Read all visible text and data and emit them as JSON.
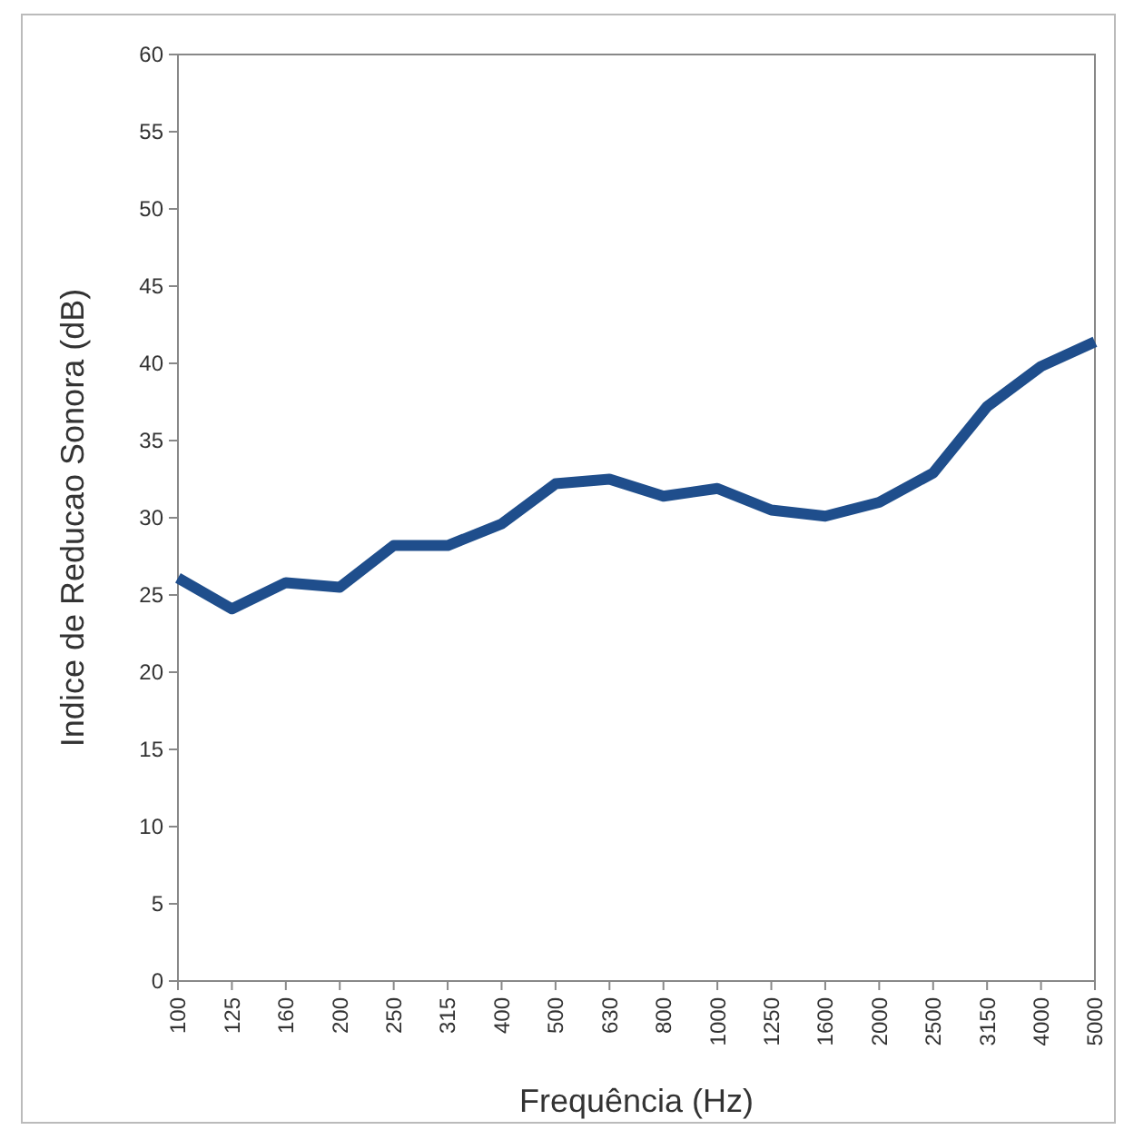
{
  "chart_data": {
    "type": "line",
    "xlabel": "Frequência (Hz)",
    "ylabel": "Indice de Reducao Sonora (dB)",
    "categories": [
      "100",
      "125",
      "160",
      "200",
      "250",
      "315",
      "400",
      "500",
      "630",
      "800",
      "1000",
      "1250",
      "1600",
      "2000",
      "2500",
      "3150",
      "4000",
      "5000"
    ],
    "series": [
      {
        "color": "#1f4e8c",
        "values": [
          26.1,
          24.1,
          25.8,
          25.5,
          28.2,
          28.2,
          29.6,
          32.2,
          32.5,
          31.4,
          31.9,
          30.5,
          30.1,
          31.0,
          32.9,
          37.2,
          39.8,
          41.4
        ]
      }
    ],
    "ylim": [
      0,
      60
    ],
    "yticks": [
      0,
      5,
      10,
      15,
      20,
      25,
      30,
      35,
      40,
      45,
      50,
      55,
      60
    ],
    "marker": "none",
    "line_style": "solid"
  }
}
